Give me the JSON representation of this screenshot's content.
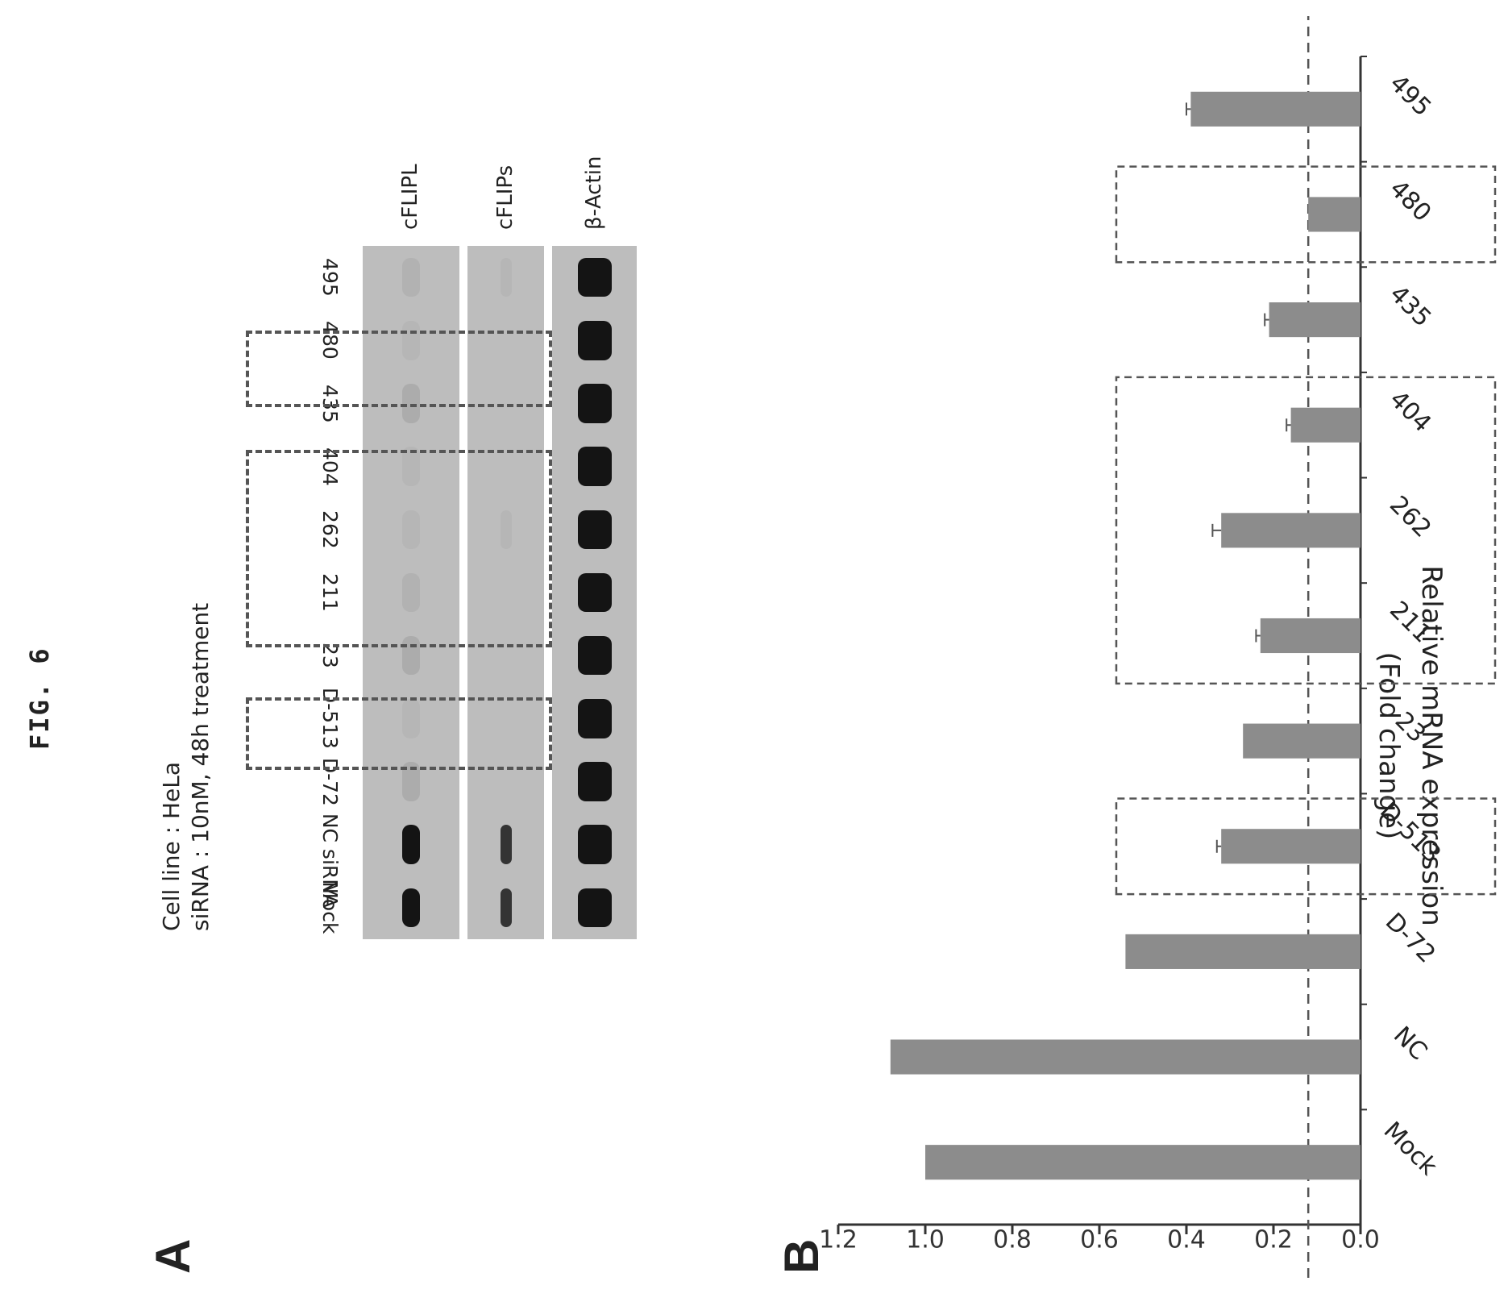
{
  "figure_title": "FIG. 6",
  "panel_a": {
    "letter": "A",
    "cell_line": "Cell line : HeLa",
    "treatment": "siRNA : 10nM, 48h treatment",
    "lanes": [
      "Mock",
      "NC siRNA",
      "D-72",
      "D-513",
      "23",
      "211",
      "262",
      "404",
      "435",
      "480",
      "495"
    ],
    "blots": [
      {
        "label": "cFLIPL",
        "intensity": [
          1.0,
          1.0,
          0.15,
          0.05,
          0.15,
          0.1,
          0.05,
          0.05,
          0.15,
          0.05,
          0.1
        ]
      },
      {
        "label": "cFLIPs",
        "intensity": [
          0.8,
          0.8,
          0,
          0,
          0,
          0,
          0.05,
          0,
          0,
          0,
          0.05
        ]
      },
      {
        "label": "β-Actin",
        "intensity": [
          1,
          1,
          1,
          1,
          1,
          1,
          1,
          1,
          1,
          1,
          1
        ]
      }
    ]
  },
  "panel_b": {
    "letter": "B"
  },
  "chart_data": {
    "type": "bar",
    "ylabel_line1": "Relative mRNA expression",
    "ylabel_line2": "(Fold change)",
    "categories": [
      "Mock",
      "NC",
      "D-72",
      "D-513",
      "23",
      "211",
      "262",
      "404",
      "435",
      "480",
      "495"
    ],
    "values": [
      1.0,
      1.08,
      0.54,
      0.32,
      0.27,
      0.23,
      0.32,
      0.16,
      0.21,
      0.12,
      0.39
    ],
    "errors": [
      0,
      0,
      0,
      0.01,
      0,
      0.01,
      0.02,
      0.01,
      0.01,
      0,
      0.01
    ],
    "ylim": [
      0,
      1.2
    ],
    "yticks": [
      "0.0",
      "0.2",
      "0.4",
      "0.6",
      "0.8",
      "1.0",
      "1.2"
    ],
    "reference_line": 0.12,
    "highlighted_groups": [
      [
        "D-513"
      ],
      [
        "211",
        "262",
        "404"
      ],
      [
        "480"
      ]
    ]
  }
}
